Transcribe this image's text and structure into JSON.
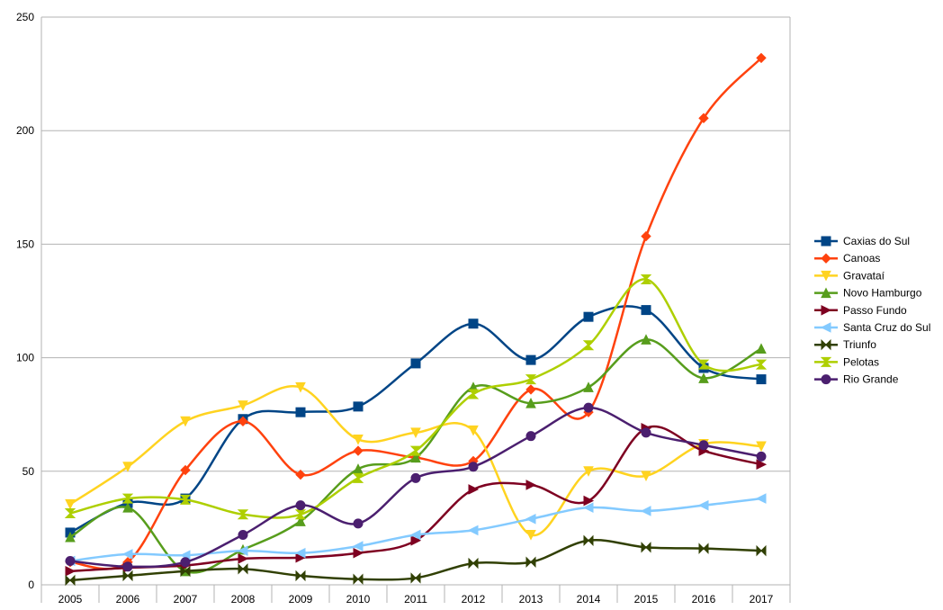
{
  "chart_data": {
    "type": "line",
    "title": "",
    "xlabel": "",
    "ylabel": "",
    "categories": [
      "2005",
      "2006",
      "2007",
      "2008",
      "2009",
      "2010",
      "2011",
      "2012",
      "2013",
      "2014",
      "2015",
      "2016",
      "2017"
    ],
    "ylim": [
      0,
      250
    ],
    "yticks": [
      "0",
      "50",
      "100",
      "150",
      "200",
      "250"
    ],
    "grid": "horizontal",
    "legend_position": "right",
    "series": [
      {
        "name": "Caxias do Sul",
        "color": "#004586",
        "marker": "square",
        "values": [
          23,
          36,
          38,
          73,
          76,
          78.5,
          97.5,
          115,
          99,
          118,
          121,
          95.5,
          90.5
        ]
      },
      {
        "name": "Canoas",
        "color": "#ff420e",
        "marker": "diamond",
        "values": [
          10,
          10,
          50.5,
          72,
          48.5,
          59,
          56,
          54.5,
          86,
          76,
          153.5,
          205.5,
          232
        ]
      },
      {
        "name": "Gravataí",
        "color": "#ffd320",
        "marker": "triangle-down",
        "values": [
          35.5,
          52,
          72,
          79,
          87,
          64,
          67,
          68,
          22,
          50,
          48,
          62,
          61
        ]
      },
      {
        "name": "Novo Hamburgo",
        "color": "#579d1c",
        "marker": "triangle-up",
        "values": [
          21,
          34,
          6,
          15.5,
          28,
          51,
          56,
          87,
          80,
          87,
          108,
          91,
          104
        ]
      },
      {
        "name": "Passo Fundo",
        "color": "#7e0021",
        "marker": "triangle-right",
        "values": [
          6,
          7.5,
          8.5,
          11.5,
          12,
          14,
          19.5,
          42,
          44,
          37,
          69,
          59,
          53
        ]
      },
      {
        "name": "Santa Cruz do Sul",
        "color": "#83caff",
        "marker": "triangle-left",
        "values": [
          10.5,
          13.5,
          13,
          15,
          14,
          17,
          22,
          24,
          29,
          34,
          32.5,
          35,
          38
        ]
      },
      {
        "name": "Triunfo",
        "color": "#314004",
        "marker": "bowtie",
        "values": [
          2,
          4,
          6,
          7,
          4,
          2.5,
          3,
          9.5,
          10,
          19.5,
          16.5,
          16,
          15
        ]
      },
      {
        "name": "Pelotas",
        "color": "#aecf00",
        "marker": "hourglass",
        "values": [
          31.5,
          38,
          37.5,
          31,
          31,
          47,
          59,
          84,
          90.5,
          105.5,
          134.5,
          97,
          97
        ]
      },
      {
        "name": "Rio Grande",
        "color": "#4b1f6f",
        "marker": "circle",
        "values": [
          10.5,
          8,
          10,
          22,
          35,
          27,
          47,
          52,
          65.5,
          78,
          67,
          61.5,
          56.5
        ]
      }
    ]
  }
}
